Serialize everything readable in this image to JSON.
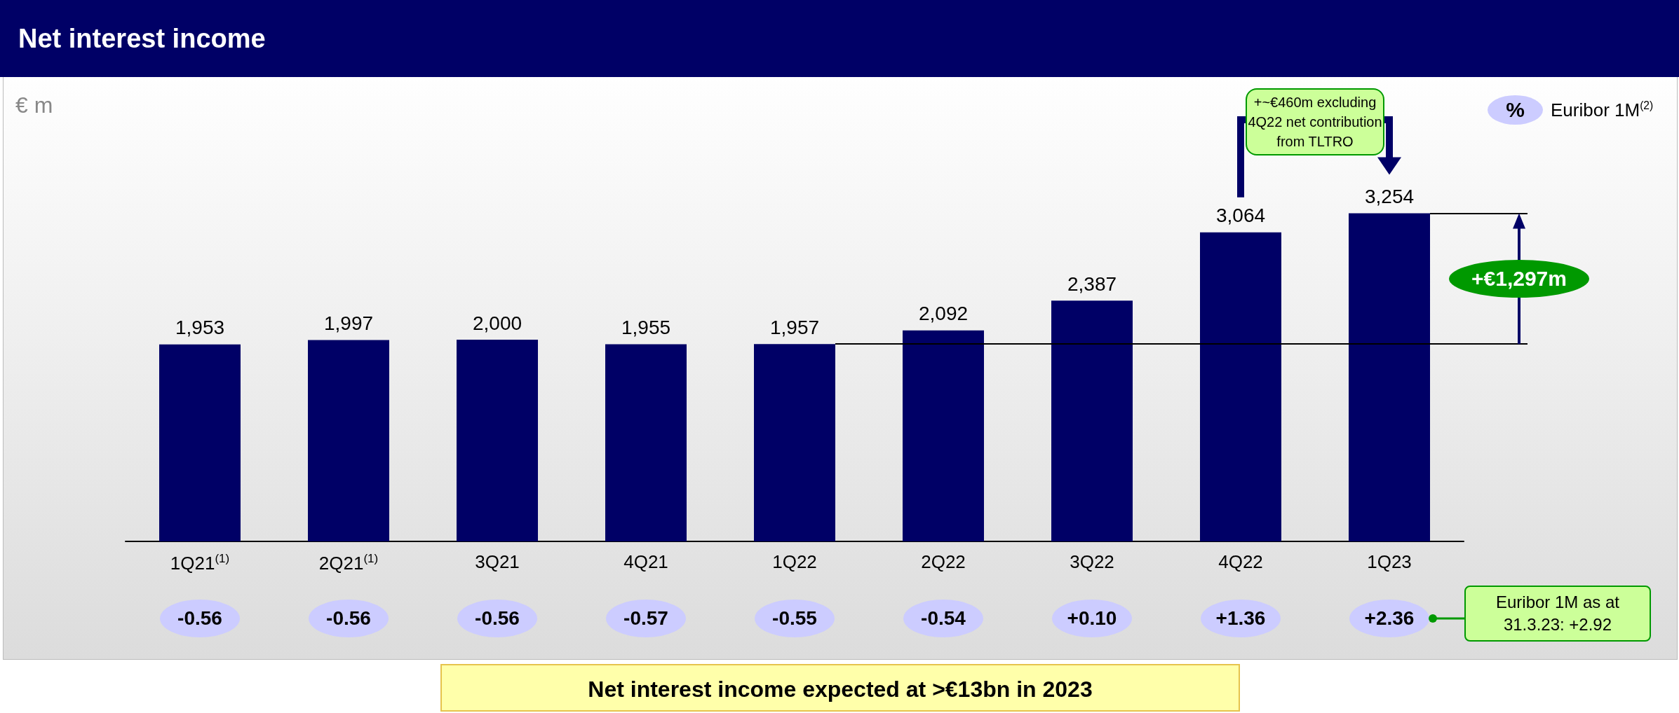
{
  "chart_data": {
    "type": "bar",
    "title": "Net interest income",
    "categories": [
      "1Q21$^{(1)}$",
      "2Q21$^{(1)}$",
      "3Q21",
      "4Q21",
      "1Q22",
      "2Q22",
      "3Q22",
      "4Q22",
      "1Q23"
    ],
    "values": [
      1953,
      1997,
      2000,
      1955,
      1957,
      2092,
      2387,
      3064,
      3254
    ],
    "value_labels": [
      "1,953",
      "1,997",
      "2,000",
      "1,955",
      "1,957",
      "2,092",
      "2,387",
      "3,064",
      "3,254"
    ],
    "color": "#000066",
    "tick_labels": "x",
    "grid": false,
    "annotations": [
      "-0.56",
      "-0.56",
      "-0.56",
      "-0.57",
      "-0.55",
      "-0.54",
      "+0.10",
      "+1.36",
      "+2.36",
      "%",
      "Euribor 1M$^{(2)}$",
      "+~€460m excluding 4Q22 net contribution from TLTRO",
      "+€1,297m",
      "Euribor 1M as at 31.3.23: +2.92",
      "Net interest income expected at >€13bn in 2023",
      "€ m"
    ]
  }
}
